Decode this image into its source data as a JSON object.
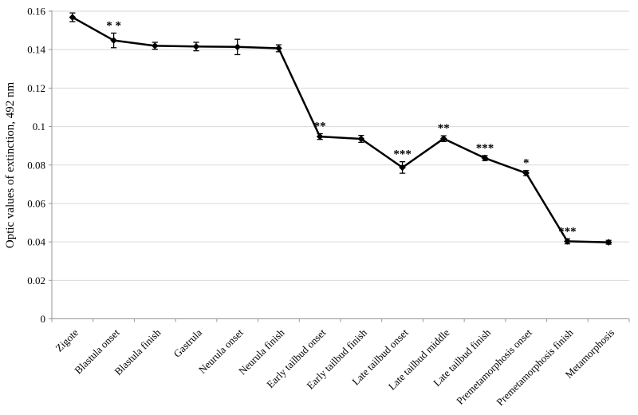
{
  "chart_data": {
    "type": "line",
    "title": "",
    "xlabel": "",
    "ylabel": "Optic values of extinction, 492 nm",
    "ylim": [
      0,
      0.16
    ],
    "ytick_interval": 0.02,
    "ytick_labels": [
      "0",
      "0.02",
      "0.04",
      "0.06",
      "0.08",
      "0.1",
      "0.12",
      "0.14",
      "0.16"
    ],
    "grid": "horizontal-only",
    "legend_position": "none",
    "marker_shape": "diamond",
    "categories": [
      "Zigote",
      "Blastula onset",
      "Blastula finish",
      "Gastrula",
      "Neurula onset",
      "Neurula finish",
      "Early tailbud onset",
      "Early tailbud finish",
      "Late tailbud onset",
      "Late tailbud middle",
      "Late tailbud finish",
      "Premetamorphosis onset",
      "Premetamorphosis finish",
      "Metamorphosis"
    ],
    "series": [
      {
        "name": "Optic values of extinction",
        "values": [
          0.1568,
          0.1448,
          0.142,
          0.1416,
          0.1414,
          0.1407,
          0.0948,
          0.0936,
          0.0787,
          0.0937,
          0.0836,
          0.0758,
          0.0403,
          0.0398
        ],
        "error_bars": [
          0.0023,
          0.0038,
          0.0018,
          0.0022,
          0.004,
          0.0018,
          0.0015,
          0.0018,
          0.003,
          0.0015,
          0.0013,
          0.0013,
          0.0013,
          0.001
        ],
        "significance": [
          "",
          "* *",
          "",
          "",
          "",
          "",
          "**",
          "",
          "***",
          "**",
          "***",
          "*",
          "***",
          ""
        ]
      }
    ],
    "colors": {
      "series": "#000000",
      "gridline": "#d9d9d9",
      "axis": "#969696",
      "text": "#000000",
      "background": "#ffffff"
    }
  }
}
